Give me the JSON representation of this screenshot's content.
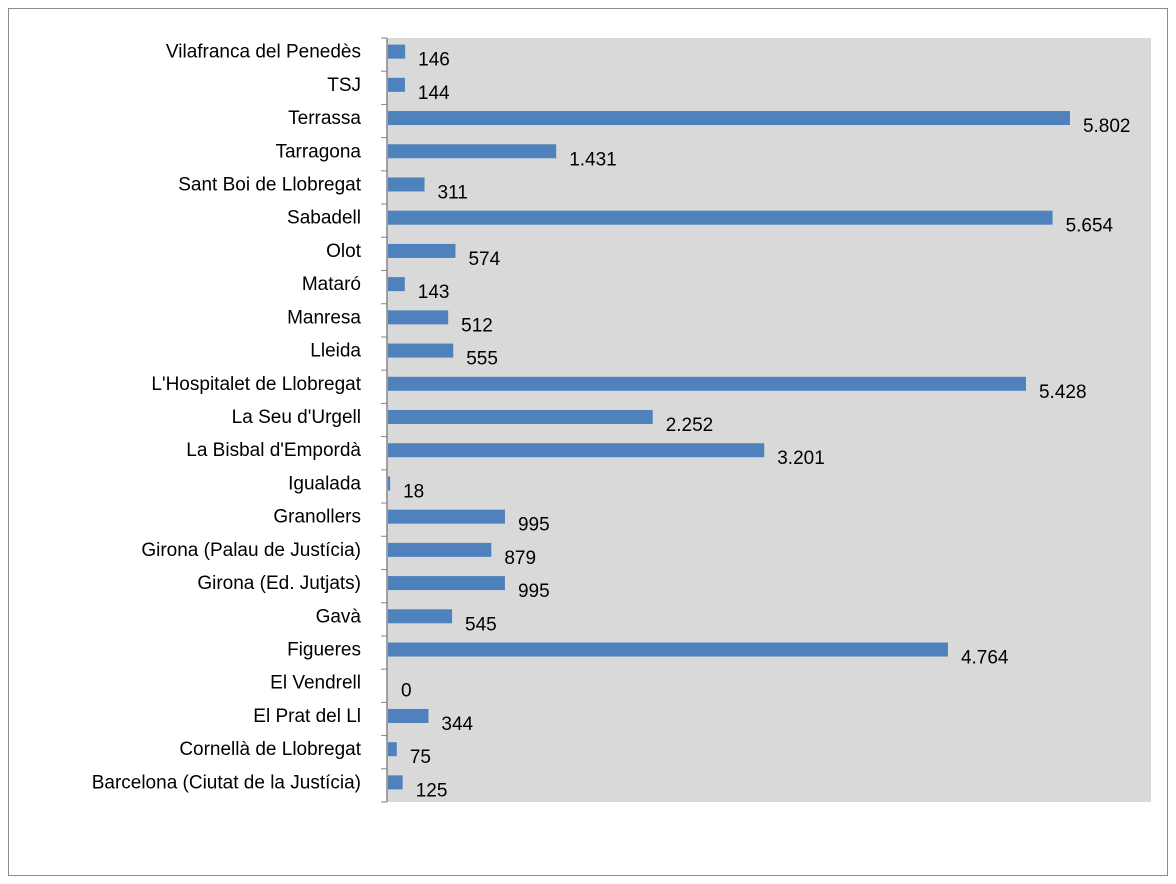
{
  "chart_data": {
    "type": "bar",
    "orientation": "horizontal",
    "categories": [
      "Vilafranca del Penedès",
      "TSJ",
      "Terrassa",
      "Tarragona",
      "Sant Boi de Llobregat",
      "Sabadell",
      "Olot",
      "Mataró",
      "Manresa",
      "Lleida",
      "L'Hospitalet de Llobregat",
      "La Seu d'Urgell",
      "La Bisbal d'Empordà",
      "Igualada",
      "Granollers",
      "Girona (Palau de Justícia)",
      "Girona (Ed. Jutjats)",
      "Gavà",
      "Figueres",
      "El Vendrell",
      "El Prat del Ll",
      "Cornellà de Llobregat",
      "Barcelona (Ciutat de la Justícia)"
    ],
    "values": [
      146,
      144,
      5802,
      1431,
      311,
      5654,
      574,
      143,
      512,
      555,
      5428,
      2252,
      3201,
      18,
      995,
      879,
      995,
      545,
      4764,
      0,
      344,
      75,
      125
    ],
    "value_labels": [
      "146",
      "144",
      "5.802",
      "1.431",
      "311",
      "5.654",
      "574",
      "143",
      "512",
      "555",
      "5.428",
      "2.252",
      "3.201",
      "18",
      "995",
      "879",
      "995",
      "545",
      "4.764",
      "0",
      "344",
      "75",
      "125"
    ],
    "title": "",
    "xlabel": "",
    "ylabel": "",
    "xlim": [
      0,
      6500
    ],
    "grid": false,
    "legend": "none",
    "colors": {
      "bar": "#4f81bd",
      "plot_background": "#d9d9d9",
      "axis": "#868686",
      "frame": "#8c8c8c"
    }
  }
}
